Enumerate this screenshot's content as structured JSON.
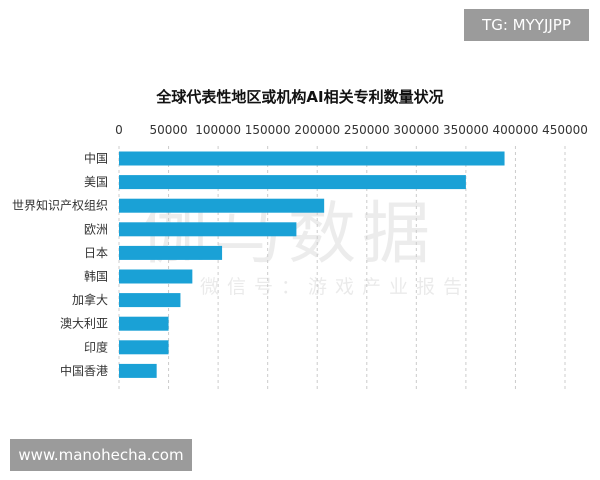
{
  "badges": {
    "top_right": "TG: MYYJJPP",
    "bottom_left": "www.manohecha.com"
  },
  "watermark": {
    "big": "伽马数据",
    "small": "微信号：游戏产业报告"
  },
  "colors": {
    "bar": "#1aa1d6",
    "grid": "#cccccc"
  },
  "chart_data": {
    "type": "bar",
    "orientation": "horizontal",
    "title": "全球代表性地区或机构AI相关专利数量状况",
    "xlabel": "",
    "ylabel": "",
    "xlim": [
      0,
      450000
    ],
    "ticks": [
      "0",
      "50000",
      "100000",
      "150000",
      "200000",
      "250000",
      "300000",
      "350000",
      "400000",
      "450000"
    ],
    "tick_values": [
      0,
      50000,
      100000,
      150000,
      200000,
      250000,
      300000,
      350000,
      400000,
      450000
    ],
    "grid": true,
    "categories": [
      "中国",
      "美国",
      "世界知识产权组织",
      "欧洲",
      "日本",
      "韩国",
      "加拿大",
      "澳大利亚",
      "印度",
      "中国香港"
    ],
    "values": [
      389000,
      350000,
      207000,
      179000,
      104000,
      74000,
      62000,
      50000,
      50000,
      38000
    ]
  }
}
